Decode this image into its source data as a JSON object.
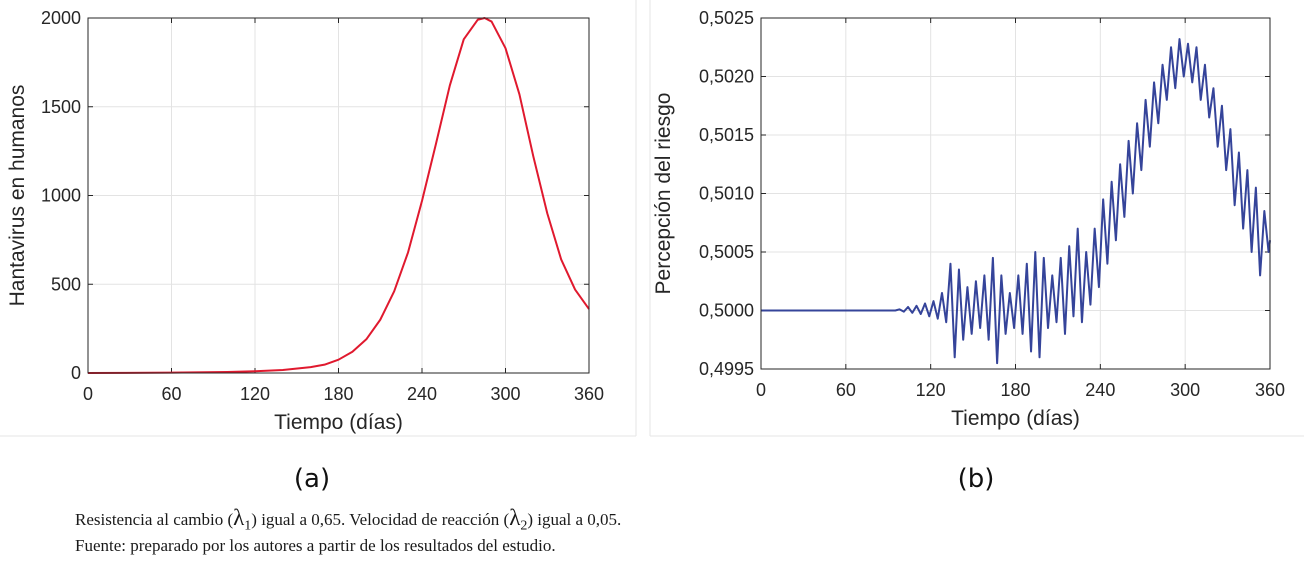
{
  "chart_data": [
    {
      "type": "line",
      "panel_label": "(a)",
      "xlabel": "Tiempo (días)",
      "ylabel": "Hantavirus en humanos",
      "xlim": [
        0,
        360
      ],
      "ylim": [
        0,
        2000
      ],
      "xticks": [
        "0",
        "60",
        "120",
        "180",
        "240",
        "300",
        "360"
      ],
      "yticks": [
        "0",
        "500",
        "1000",
        "1500",
        "2000"
      ],
      "grid": true,
      "series": [
        {
          "color": "#e0192e",
          "x": [
            0,
            60,
            100,
            120,
            140,
            160,
            170,
            180,
            190,
            200,
            210,
            220,
            230,
            240,
            250,
            260,
            270,
            280,
            285,
            290,
            300,
            310,
            320,
            330,
            340,
            350,
            360
          ],
          "y": [
            0,
            2,
            6,
            10,
            17,
            33,
            47,
            75,
            120,
            190,
            300,
            460,
            680,
            970,
            1290,
            1620,
            1880,
            1990,
            2000,
            1980,
            1830,
            1570,
            1220,
            900,
            640,
            470,
            360
          ]
        }
      ]
    },
    {
      "type": "line",
      "panel_label": "(b)",
      "xlabel": "Tiempo (días)",
      "ylabel": "Percepción del riesgo",
      "xlim": [
        0,
        360
      ],
      "ylim": [
        0.4995,
        0.5025
      ],
      "xticks": [
        "0",
        "60",
        "120",
        "180",
        "240",
        "300",
        "360"
      ],
      "yticks": [
        "0,4995",
        "0,5000",
        "0,5005",
        "0,5010",
        "0,5015",
        "0,5020",
        "0,5025"
      ],
      "grid": true,
      "series": [
        {
          "color": "#35449a",
          "x": [
            0,
            20,
            40,
            60,
            80,
            90,
            95,
            98,
            101,
            104,
            107,
            110,
            113,
            116,
            119,
            122,
            125,
            128,
            131,
            134,
            137,
            140,
            143,
            146,
            149,
            152,
            155,
            158,
            161,
            164,
            167,
            170,
            173,
            176,
            179,
            182,
            185,
            188,
            191,
            194,
            197,
            200,
            203,
            206,
            209,
            212,
            215,
            218,
            221,
            224,
            227,
            230,
            233,
            236,
            239,
            242,
            245,
            248,
            251,
            254,
            257,
            260,
            263,
            266,
            269,
            272,
            275,
            278,
            281,
            284,
            287,
            290,
            293,
            296,
            299,
            302,
            305,
            308,
            311,
            314,
            317,
            320,
            323,
            326,
            329,
            332,
            335,
            338,
            341,
            344,
            347,
            350,
            353,
            356,
            359,
            360
          ],
          "y": [
            0.5,
            0.5,
            0.5,
            0.5,
            0.5,
            0.5,
            0.5,
            0.50001,
            0.49999,
            0.50003,
            0.49998,
            0.50004,
            0.49997,
            0.50006,
            0.49995,
            0.50008,
            0.49993,
            0.50015,
            0.4999,
            0.5004,
            0.4996,
            0.50035,
            0.49975,
            0.5002,
            0.4998,
            0.50025,
            0.49985,
            0.5003,
            0.49975,
            0.50045,
            0.49955,
            0.5003,
            0.4998,
            0.50015,
            0.49985,
            0.5003,
            0.4998,
            0.5004,
            0.49965,
            0.5005,
            0.4996,
            0.50045,
            0.49985,
            0.5003,
            0.4999,
            0.50045,
            0.4998,
            0.50055,
            0.49995,
            0.5007,
            0.4999,
            0.5005,
            0.50005,
            0.5007,
            0.5002,
            0.50095,
            0.5004,
            0.5011,
            0.5006,
            0.50125,
            0.5008,
            0.50145,
            0.501,
            0.5016,
            0.5012,
            0.5018,
            0.5014,
            0.50195,
            0.5016,
            0.5021,
            0.5018,
            0.50225,
            0.5019,
            0.50232,
            0.502,
            0.50228,
            0.50195,
            0.50225,
            0.5018,
            0.5021,
            0.50165,
            0.5019,
            0.5014,
            0.50175,
            0.5012,
            0.50155,
            0.5009,
            0.50135,
            0.5007,
            0.5012,
            0.5005,
            0.50105,
            0.5003,
            0.50085,
            0.5005,
            0.5006
          ]
        }
      ]
    }
  ],
  "caption": {
    "line1_part1": "Resistencia al cambio (",
    "lambda1_symbol": "λ",
    "lambda1_sub": "1",
    "line1_part2": ") igual a 0,65. Velocidad de reacción (",
    "lambda2_symbol": "λ",
    "lambda2_sub": "2",
    "line1_part3": ") igual a 0,05.",
    "line2": "Fuente: preparado por los autores a partir de los resultados del estudio."
  }
}
